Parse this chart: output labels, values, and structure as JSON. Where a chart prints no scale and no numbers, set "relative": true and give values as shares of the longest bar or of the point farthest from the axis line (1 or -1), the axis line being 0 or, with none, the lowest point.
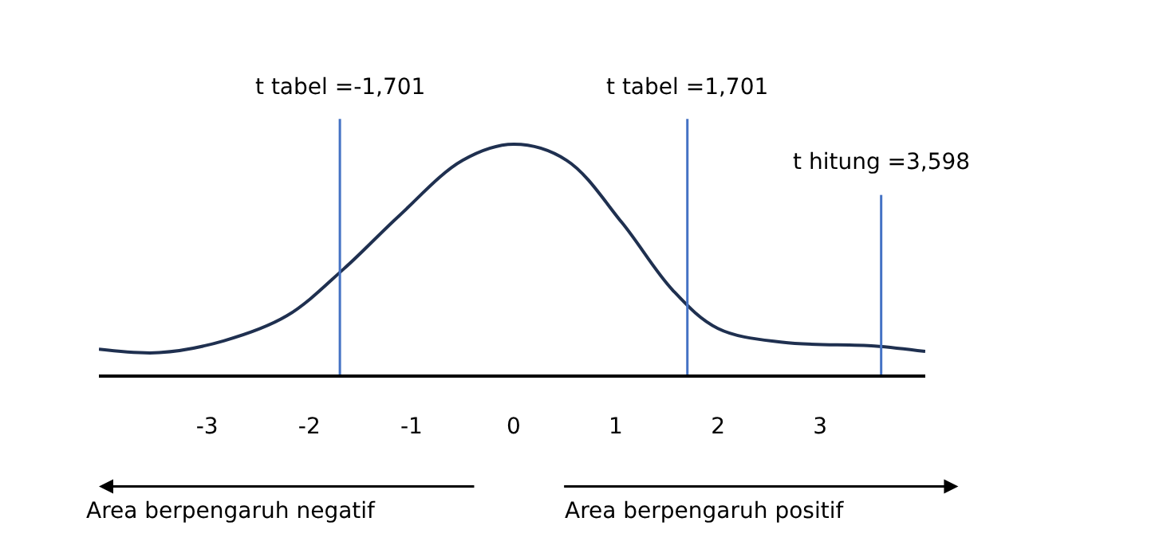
{
  "chart_data": {
    "type": "line",
    "relative": true,
    "x": [
      -4.06,
      -3.47,
      -2.84,
      -2.22,
      -1.66,
      -1.12,
      -0.5,
      0,
      0.52,
      1.06,
      1.56,
      2.0,
      2.63,
      3.53,
      4.03
    ],
    "series": [
      {
        "color": "#1f3050",
        "values": [
          0.11,
          0.095,
          0.146,
          0.255,
          0.46,
          0.69,
          0.93,
          1,
          0.93,
          0.66,
          0.365,
          0.2,
          0.14,
          0.124,
          0.1
        ]
      }
    ],
    "xlim": [
      -4.06,
      4.03
    ],
    "xticks": [
      -3,
      -2,
      -1,
      0,
      1,
      2,
      3
    ],
    "ref_lines": [
      {
        "axis": "x",
        "value": -1.701,
        "label": "t tabel =-1,701",
        "color": "#4472c4"
      },
      {
        "axis": "x",
        "value": 1.701,
        "label": "t tabel =1,701",
        "color": "#4472c4"
      },
      {
        "axis": "x",
        "value": 3.598,
        "label": "t hitung =3,598",
        "color": "#4472c4"
      }
    ],
    "annotations": [
      "Area berpengaruh negatif",
      "Area berpengaruh positif"
    ],
    "marker": "none",
    "line_style": "solid"
  }
}
